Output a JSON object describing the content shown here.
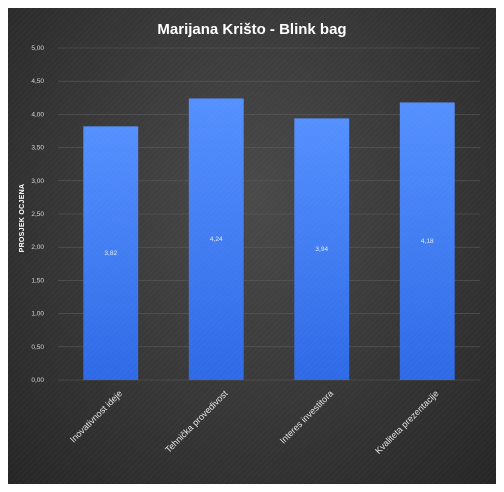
{
  "chart_data": {
    "type": "bar",
    "title": "Marijana Krišto - Blink bag",
    "xlabel": "",
    "ylabel": "PROSJEK OCJENA",
    "categories": [
      "Inovativnost ideje",
      "Tehnička provedivost",
      "Interes investitora",
      "Kvaliteta prezentacije"
    ],
    "values": [
      3.82,
      4.24,
      3.94,
      4.18
    ],
    "data_labels": [
      "3,82",
      "4,24",
      "3,94",
      "4,18"
    ],
    "y_ticks": [
      "0,00",
      "0,50",
      "1,00",
      "1,50",
      "2,00",
      "2,50",
      "3,00",
      "3,50",
      "4,00",
      "4,50",
      "5,00"
    ],
    "ylim": [
      0,
      5
    ],
    "grid": true,
    "legend": "none",
    "colors": {
      "bar": "#3c7cf0",
      "bar_light": "#4f8cff",
      "background": "#333333"
    }
  }
}
